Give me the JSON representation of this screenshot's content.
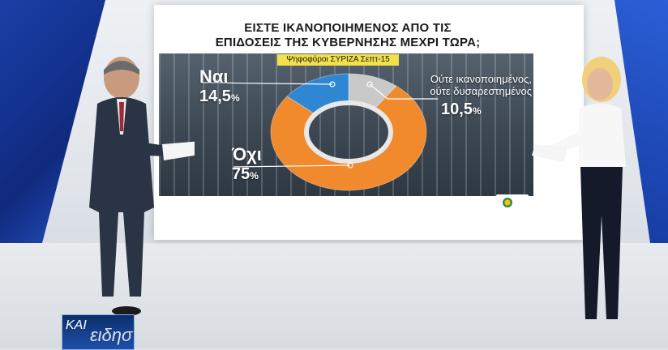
{
  "chart_data": {
    "type": "pie",
    "title": "ΕΙΣΤΕ ΙΚΑΝΟΠΟΙΗΜΕΝΟΣ ΑΠΟ ΤΙΣ ΕΠΙΔΟΣΕΙΣ ΤΗΣ ΚΥΒΕΡΝΗΣΗΣ ΜΕΧΡΙ ΤΩΡΑ;",
    "title_lines": [
      "ΕΙΣΤΕ ΙΚΑΝΟΠΟΙΗΜΕΝΟΣ ΑΠΟ ΤΙΣ",
      "ΕΠΙΔΟΣΕΙΣ ΤΗΣ ΚΥΒΕΡΝΗΣΗΣ ΜΕΧΡΙ ΤΩΡΑ;"
    ],
    "subtitle": "Ψηφοφόροι ΣΥΡΙΖΑ Σεπτ-15",
    "categories": [
      "Ναι",
      "Ούτε ικανοποιημένος, ούτε δυσαρεστημένος",
      "Όχι"
    ],
    "values": [
      14.5,
      10.5,
      75
    ],
    "colors": [
      "#2f86d2",
      "#c9c9c9",
      "#f08a2c"
    ],
    "labels": {
      "yes_name": "Ναι",
      "yes_value": "14,5",
      "neutral_name_1": "Ούτε ικανοποιημένος,",
      "neutral_name_2": "ούτε δυσαρεστημένος",
      "neutral_value": "10,5",
      "no_name": "Όχι",
      "no_value": "75",
      "percent_sign": "%"
    }
  },
  "broadcast": {
    "logo_line1": "ΚΑΙ",
    "logo_line2": "ειδησ"
  }
}
